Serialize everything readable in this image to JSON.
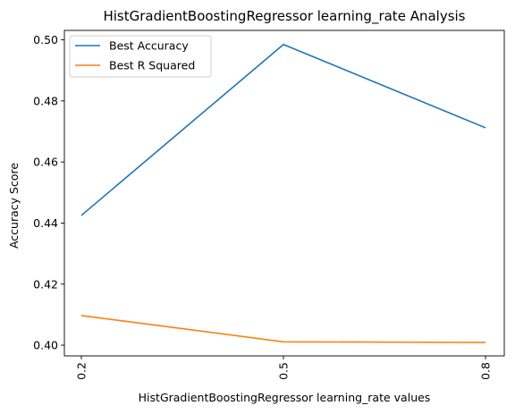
{
  "chart_data": {
    "type": "line",
    "title": "HistGradientBoostingRegressor learning_rate Analysis",
    "xlabel": "HistGradientBoostingRegressor learning_rate values",
    "ylabel": "Accuracy Score",
    "categories": [
      "0.2",
      "0.5",
      "0.8"
    ],
    "series": [
      {
        "name": "Best Accuracy",
        "color": "#1f77b4",
        "values": [
          0.4425,
          0.4985,
          0.4712
        ]
      },
      {
        "name": "Best R Squared",
        "color": "#ff7f0e",
        "values": [
          0.4097,
          0.4011,
          0.4009
        ]
      }
    ],
    "yticks": [
      "0.40",
      "0.42",
      "0.44",
      "0.46",
      "0.48",
      "0.50"
    ],
    "ylim": [
      0.3965,
      0.5031
    ],
    "legend_position": "top-left",
    "grid": false
  }
}
